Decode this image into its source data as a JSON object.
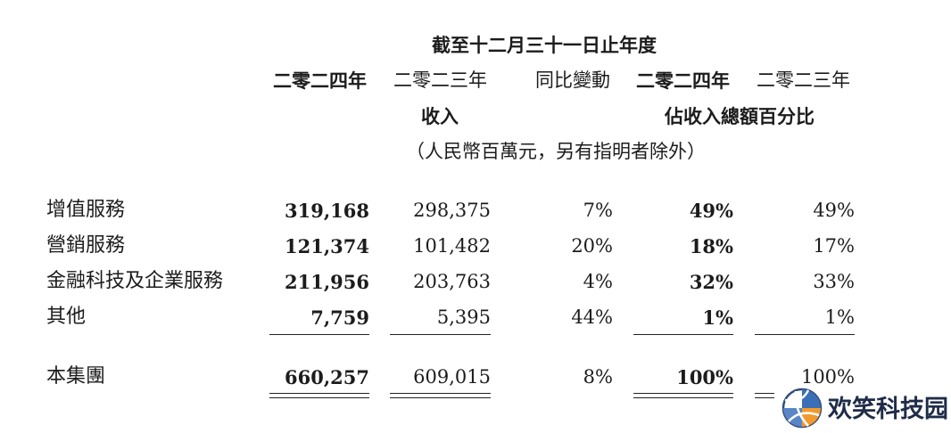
{
  "header": {
    "period": "截至十二月三十一日止年度",
    "col_2024": "二零二四年",
    "col_2023": "二零二三年",
    "col_yoy": "同比變動",
    "col_pct_2024": "二零二四年",
    "col_pct_2023": "二零二三年",
    "revenue_label": "收入",
    "pct_label": "佔收入總額百分比",
    "unit_note": "（人民幣百萬元，另有指明者除外）"
  },
  "rows": [
    {
      "label": "增值服務",
      "v2024": "319,168",
      "v2023": "298,375",
      "yoy": "7%",
      "p2024": "49%",
      "p2023": "49%"
    },
    {
      "label": "營銷服務",
      "v2024": "121,374",
      "v2023": "101,482",
      "yoy": "20%",
      "p2024": "18%",
      "p2023": "17%"
    },
    {
      "label": "金融科技及企業服務",
      "v2024": "211,956",
      "v2023": "203,763",
      "yoy": "4%",
      "p2024": "32%",
      "p2023": "33%"
    },
    {
      "label": "其他",
      "v2024": "7,759",
      "v2023": "5,395",
      "yoy": "44%",
      "p2024": "1%",
      "p2023": "1%"
    }
  ],
  "total": {
    "label": "本集團",
    "v2024": "660,257",
    "v2023": "609,015",
    "yoy": "8%",
    "p2024": "100%",
    "p2023": "100%"
  },
  "watermark": {
    "text": "欢笑科技园",
    "icon": "volleyball-logo-icon"
  }
}
